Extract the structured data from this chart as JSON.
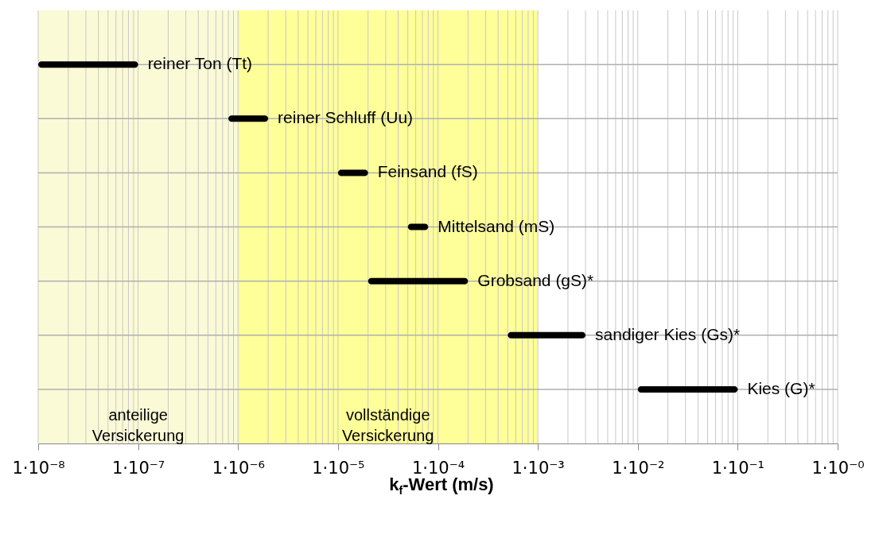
{
  "chart_data": {
    "type": "bar",
    "orientation": "horizontal",
    "categories": [
      "reiner Ton  (Tt)",
      "reiner Schluff (Uu)",
      "Feinsand  (fS)",
      "Mittelsand (mS)",
      "Grobsand (gS)*",
      "sandiger Kies  (Gs)*",
      "Kies (G)*"
    ],
    "base": [
      1e-08,
      8e-07,
      1e-05,
      5e-05,
      2e-05,
      0.0005,
      0.01
    ],
    "values": [
      9e-08,
      1.2e-06,
      1e-05,
      3e-05,
      0.00018,
      0.0025,
      0.09
    ],
    "color": "#000000",
    "log": "x",
    "xlim": [
      1e-08,
      1
    ],
    "xticks": [
      {
        "value": 1e-08,
        "label": "1·10⁻⁸"
      },
      {
        "value": 1e-07,
        "label": "1·10⁻⁷"
      },
      {
        "value": 1e-06,
        "label": "1·10⁻⁶"
      },
      {
        "value": 1e-05,
        "label": "1·10⁻⁵"
      },
      {
        "value": 0.0001,
        "label": "1·10⁻⁴"
      },
      {
        "value": 0.001,
        "label": "1·10⁻³"
      },
      {
        "value": 0.01,
        "label": "1·10⁻²"
      },
      {
        "value": 0.1,
        "label": "1·10⁻¹"
      },
      {
        "value": 1,
        "label": "1·10⁻⁰"
      }
    ],
    "xlabel": "k$_{f}$-Wert (m/s)",
    "bands": [
      {
        "axis": "x",
        "from": 1e-08,
        "to": 1e-06,
        "label": "anteilige Versickerung",
        "color": "#fafad7"
      },
      {
        "axis": "x",
        "from": 1e-06,
        "to": 0.001,
        "label": "vollständige Versickerung",
        "color": "#ffff99"
      }
    ],
    "grid": true
  }
}
